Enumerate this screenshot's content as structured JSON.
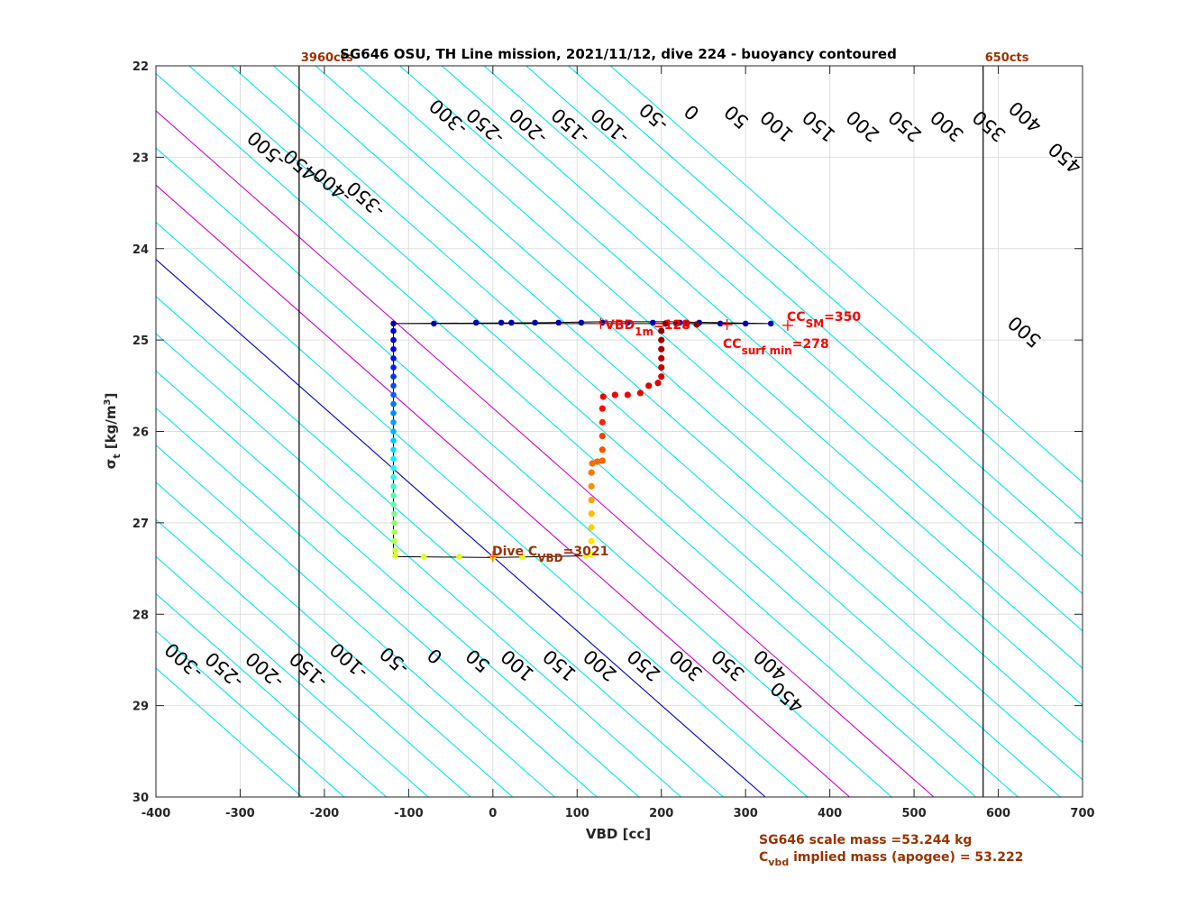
{
  "chart_data": {
    "type": "scatter",
    "title": "SG646 OSU, TH Line mission, 2021/11/12, dive 224 - buoyancy contoured",
    "xlabel": "VBD [cc]",
    "ylabel_main": "σ",
    "ylabel_sub": "t",
    "ylabel_unit_pre": " [kg/m",
    "ylabel_unit_sup": "3",
    "ylabel_unit_post": "]",
    "xlim": [
      -400,
      700
    ],
    "ylim": [
      22,
      30
    ],
    "y_reversed": true,
    "grid": true,
    "xticks": [
      "-400",
      "-300",
      "-200",
      "-100",
      "0",
      "100",
      "200",
      "300",
      "400",
      "500",
      "600",
      "700"
    ],
    "yticks": [
      "22",
      "23",
      "24",
      "25",
      "26",
      "27",
      "28",
      "29",
      "30"
    ],
    "contour_slope_cc_per_sigma": 123,
    "contours": [
      {
        "value": -550,
        "color": "#00e5ee"
      },
      {
        "value": -500,
        "color": "#00e5ee"
      },
      {
        "value": -450,
        "color": "#00e5ee"
      },
      {
        "value": -400,
        "color": "#00e5ee"
      },
      {
        "value": -350,
        "color": "#00e5ee"
      },
      {
        "value": -300,
        "color": "#00e5ee"
      },
      {
        "value": -250,
        "color": "#00e5ee"
      },
      {
        "value": -200,
        "color": "#00e5ee"
      },
      {
        "value": -150,
        "color": "#00e5ee"
      },
      {
        "value": -100,
        "color": "#00e5ee"
      },
      {
        "value": -50,
        "color": "#00e5ee"
      },
      {
        "value": 0,
        "color": "#0000cc"
      },
      {
        "value": 50,
        "color": "#00e5ee"
      },
      {
        "value": 100,
        "color": "#cc00cc"
      },
      {
        "value": 150,
        "color": "#00e5ee"
      },
      {
        "value": 200,
        "color": "#cc00cc"
      },
      {
        "value": 250,
        "color": "#00e5ee"
      },
      {
        "value": 300,
        "color": "#00e5ee"
      },
      {
        "value": 350,
        "color": "#00e5ee"
      },
      {
        "value": 400,
        "color": "#00e5ee"
      },
      {
        "value": 450,
        "color": "#00e5ee"
      },
      {
        "value": 500,
        "color": "#00e5ee"
      },
      {
        "value": 550,
        "color": "#00e5ee"
      },
      {
        "value": 600,
        "color": "#00e5ee"
      },
      {
        "value": 650,
        "color": "#00e5ee"
      },
      {
        "value": 700,
        "color": "#00e5ee"
      },
      {
        "value": 750,
        "color": "#00e5ee"
      },
      {
        "value": 800,
        "color": "#00e5ee"
      }
    ],
    "contour_labels_top": [
      {
        "text": "-500",
        "x": -268,
        "y": 22.9
      },
      {
        "text": "-450",
        "x": -225,
        "y": 23.1
      },
      {
        "text": "-400",
        "x": -190,
        "y": 23.3
      },
      {
        "text": "-350",
        "x": -150,
        "y": 23.45
      },
      {
        "text": "-300",
        "x": -52,
        "y": 22.55
      },
      {
        "text": "-250",
        "x": -8,
        "y": 22.65
      },
      {
        "text": "-200",
        "x": 43,
        "y": 22.65
      },
      {
        "text": "-150",
        "x": 93,
        "y": 22.65
      },
      {
        "text": "-100",
        "x": 140,
        "y": 22.65
      },
      {
        "text": "-50",
        "x": 192,
        "y": 22.55
      },
      {
        "text": "0",
        "x": 237,
        "y": 22.5
      },
      {
        "text": "50",
        "x": 290,
        "y": 22.55
      },
      {
        "text": "100",
        "x": 338,
        "y": 22.65
      },
      {
        "text": "150",
        "x": 388,
        "y": 22.65
      },
      {
        "text": "200",
        "x": 440,
        "y": 22.65
      },
      {
        "text": "250",
        "x": 490,
        "y": 22.65
      },
      {
        "text": "300",
        "x": 540,
        "y": 22.65
      },
      {
        "text": "350",
        "x": 590,
        "y": 22.65
      },
      {
        "text": "400",
        "x": 633,
        "y": 22.55
      },
      {
        "text": "450",
        "x": 680,
        "y": 23.0
      },
      {
        "text": "500",
        "x": 632,
        "y": 24.9
      }
    ],
    "contour_labels_bottom": [
      {
        "text": "-300",
        "x": -366,
        "y": 28.5
      },
      {
        "text": "-250",
        "x": -318,
        "y": 28.6
      },
      {
        "text": "-200",
        "x": -270,
        "y": 28.6
      },
      {
        "text": "-150",
        "x": -218,
        "y": 28.6
      },
      {
        "text": "-100",
        "x": -170,
        "y": 28.5
      },
      {
        "text": "-50",
        "x": -116,
        "y": 28.5
      },
      {
        "text": "0",
        "x": -68,
        "y": 28.45
      },
      {
        "text": "50",
        "x": -17,
        "y": 28.5
      },
      {
        "text": "100",
        "x": 30,
        "y": 28.55
      },
      {
        "text": "150",
        "x": 80,
        "y": 28.55
      },
      {
        "text": "200",
        "x": 128,
        "y": 28.55
      },
      {
        "text": "250",
        "x": 180,
        "y": 28.55
      },
      {
        "text": "300",
        "x": 230,
        "y": 28.55
      },
      {
        "text": "350",
        "x": 280,
        "y": 28.55
      },
      {
        "text": "400",
        "x": 330,
        "y": 28.55
      },
      {
        "text": "450",
        "x": 350,
        "y": 28.9
      }
    ],
    "vlines": [
      {
        "x": -230,
        "label": "3960cts"
      },
      {
        "x": 582,
        "label": "650cts"
      }
    ],
    "profile_path": [
      [
        -118,
        24.82
      ],
      [
        60,
        24.81
      ],
      [
        130,
        24.8
      ],
      [
        210,
        24.8
      ],
      [
        330,
        24.82
      ],
      [
        -118,
        24.82
      ],
      [
        -118,
        27.37
      ],
      [
        0,
        27.38
      ],
      [
        120,
        27.36
      ]
    ],
    "dive_points": [
      [
        -118,
        24.82
      ],
      [
        -70,
        24.82
      ],
      [
        -20,
        24.81
      ],
      [
        10,
        24.81
      ],
      [
        22,
        24.81
      ],
      [
        50,
        24.81
      ],
      [
        78,
        24.81
      ],
      [
        105,
        24.81
      ],
      [
        130,
        24.81
      ],
      [
        160,
        24.81
      ],
      [
        190,
        24.81
      ],
      [
        222,
        24.81
      ],
      [
        245,
        24.81
      ],
      [
        270,
        24.82
      ],
      [
        300,
        24.82
      ],
      [
        330,
        24.82
      ],
      [
        -118,
        24.9
      ],
      [
        -118,
        25.0
      ],
      [
        -118,
        25.1
      ],
      [
        -118,
        25.2
      ],
      [
        -118,
        25.3
      ],
      [
        -118,
        25.4
      ],
      [
        -118,
        25.5
      ],
      [
        -118,
        25.6
      ],
      [
        -118,
        25.7
      ],
      [
        -118,
        25.8
      ],
      [
        -118,
        25.9
      ],
      [
        -118,
        26.0
      ],
      [
        -118,
        26.1
      ],
      [
        -118,
        26.2
      ],
      [
        -118,
        26.3
      ],
      [
        -118,
        26.4
      ],
      [
        -118,
        26.5
      ],
      [
        -118,
        26.6
      ],
      [
        -118,
        26.7
      ],
      [
        -118,
        26.8
      ],
      [
        -117,
        26.9
      ],
      [
        -117,
        27.0
      ],
      [
        -117,
        27.1
      ],
      [
        -117,
        27.2
      ],
      [
        -116,
        27.3
      ],
      [
        -116,
        27.36
      ],
      [
        -82,
        27.37
      ],
      [
        -40,
        27.37
      ],
      [
        0,
        27.38
      ],
      [
        35,
        27.37
      ],
      [
        110,
        27.36
      ]
    ],
    "climb_points": [
      [
        117,
        27.35
      ],
      [
        117,
        27.2
      ],
      [
        117,
        27.05
      ],
      [
        117,
        26.9
      ],
      [
        117,
        26.75
      ],
      [
        117,
        26.6
      ],
      [
        117,
        26.45
      ],
      [
        118,
        26.35
      ],
      [
        124,
        26.33
      ],
      [
        130,
        26.32
      ],
      [
        130,
        26.2
      ],
      [
        130,
        26.05
      ],
      [
        130,
        25.9
      ],
      [
        130,
        25.75
      ],
      [
        131,
        25.62
      ],
      [
        145,
        25.6
      ],
      [
        160,
        25.6
      ],
      [
        175,
        25.58
      ],
      [
        185,
        25.5
      ],
      [
        196,
        25.47
      ],
      [
        200,
        25.4
      ],
      [
        200,
        25.3
      ],
      [
        200,
        25.2
      ],
      [
        200,
        25.1
      ],
      [
        200,
        25.0
      ],
      [
        200,
        24.9
      ],
      [
        205,
        24.82
      ],
      [
        218,
        24.82
      ],
      [
        230,
        24.82
      ],
      [
        242,
        24.83
      ]
    ],
    "markers": [
      {
        "name": "vbd-1m",
        "x": 128,
        "y": 24.82,
        "color": "#ff0000"
      },
      {
        "name": "cc-surf-min",
        "x": 278,
        "y": 24.83,
        "color": "#ff0000"
      },
      {
        "name": "cc-sm",
        "x": 350,
        "y": 24.84,
        "color": "#ff0000"
      },
      {
        "name": "dive-cvbd",
        "x": 0,
        "y": 27.37,
        "color": "#ff6600"
      }
    ],
    "annotations": {
      "vbd1m_main": "VBD",
      "vbd1m_sub": "1m",
      "vbd1m_val": "=128",
      "ccsm_main": "CC",
      "ccsm_sub": "SM",
      "ccsm_val": "=350",
      "ccsurf_main": "CC",
      "ccsurf_sub": "surf min",
      "ccsurf_val": "=278",
      "divec_main": "Dive C",
      "divec_sub": "VBD",
      "divec_val": "=3021"
    },
    "footer": {
      "line1": "SG646 scale mass =53.244 kg",
      "line2_main": "C",
      "line2_sub": "vbd",
      "line2_rest": " implied mass (apogee) = 53.222"
    }
  }
}
